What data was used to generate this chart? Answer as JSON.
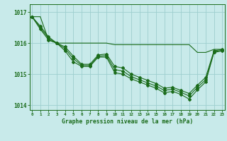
{
  "title": "Graphe pression niveau de la mer (hPa)",
  "xlabel_hours": [
    0,
    1,
    2,
    3,
    4,
    5,
    6,
    7,
    8,
    9,
    10,
    11,
    12,
    13,
    14,
    15,
    16,
    17,
    18,
    19,
    20,
    21,
    22,
    23
  ],
  "line_flat": [
    1016.85,
    1016.85,
    1016.1,
    1016.0,
    1016.0,
    1016.0,
    1016.0,
    1016.0,
    1016.0,
    1016.0,
    1015.95,
    1015.95,
    1015.95,
    1015.95,
    1015.95,
    1015.95,
    1015.95,
    1015.95,
    1015.95,
    1015.95,
    1015.7,
    1015.7,
    1015.8,
    1015.8
  ],
  "line_a": [
    1016.85,
    1016.45,
    1016.1,
    1016.0,
    1015.75,
    1015.4,
    1015.25,
    1015.25,
    1015.55,
    1015.55,
    1015.05,
    1015.0,
    1014.85,
    1014.75,
    1014.65,
    1014.55,
    1014.4,
    1014.45,
    1014.35,
    1014.2,
    1014.5,
    1014.75,
    1015.7,
    1015.75
  ],
  "line_b": [
    1016.85,
    1016.5,
    1016.15,
    1016.0,
    1015.82,
    1015.5,
    1015.28,
    1015.28,
    1015.58,
    1015.6,
    1015.15,
    1015.1,
    1014.92,
    1014.82,
    1014.72,
    1014.62,
    1014.48,
    1014.52,
    1014.42,
    1014.3,
    1014.58,
    1014.82,
    1015.72,
    1015.77
  ],
  "line_c": [
    1016.85,
    1016.55,
    1016.2,
    1016.0,
    1015.88,
    1015.58,
    1015.32,
    1015.32,
    1015.62,
    1015.65,
    1015.25,
    1015.2,
    1015.0,
    1014.9,
    1014.8,
    1014.7,
    1014.55,
    1014.58,
    1014.48,
    1014.38,
    1014.65,
    1014.9,
    1015.75,
    1015.8
  ],
  "line_color": "#1a6b1a",
  "bg_color": "#c8eaea",
  "grid_color": "#9ecece",
  "tick_color": "#1a6b1a",
  "ylim_min": 1013.85,
  "ylim_max": 1017.25,
  "yticks": [
    1014,
    1015,
    1016,
    1017
  ]
}
